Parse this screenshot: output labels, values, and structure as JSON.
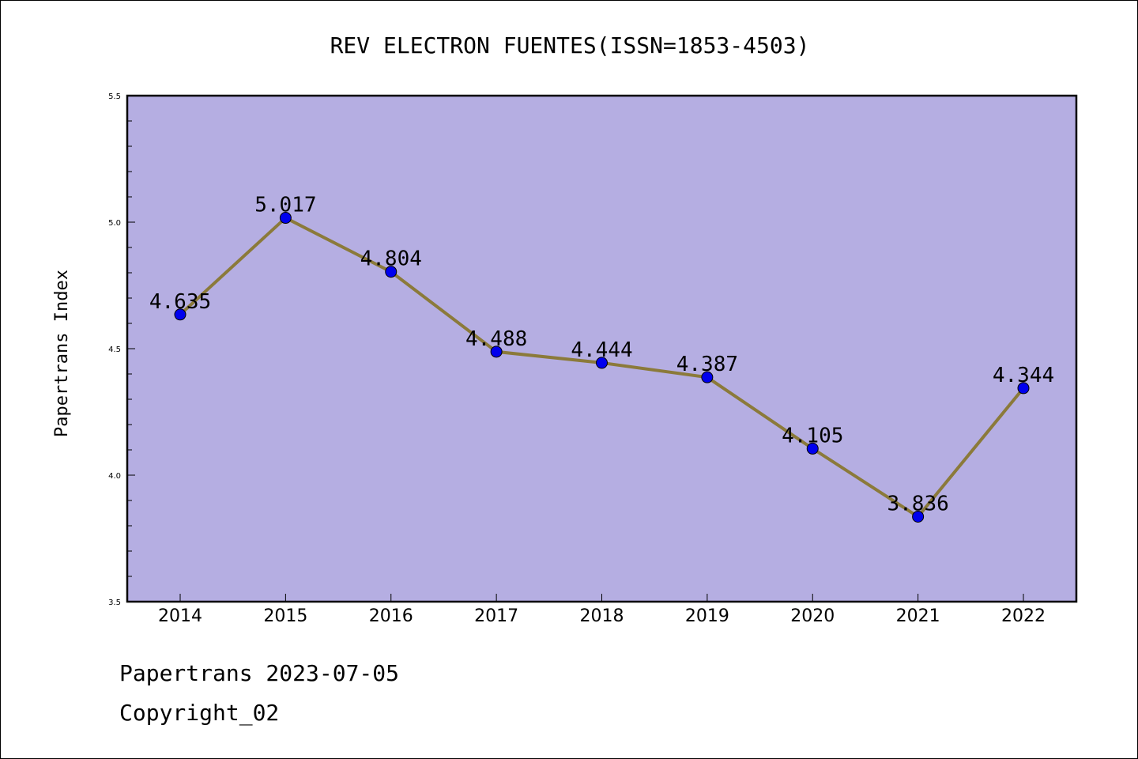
{
  "chart_data": {
    "type": "line",
    "title": "REV ELECTRON FUENTES(ISSN=1853-4503)",
    "xlabel": "",
    "ylabel": "Papertrans Index",
    "categories": [
      "2014",
      "2015",
      "2016",
      "2017",
      "2018",
      "2019",
      "2020",
      "2021",
      "2022"
    ],
    "values": [
      4.635,
      5.017,
      4.804,
      4.488,
      4.444,
      4.387,
      4.105,
      3.836,
      4.344
    ],
    "data_labels": [
      "4.635",
      "5.017",
      "4.804",
      "4.488",
      "4.444",
      "4.387",
      "4.105",
      "3.836",
      "4.344"
    ],
    "ylim": [
      3.5,
      5.5
    ],
    "yticks": [
      "3.5",
      "4.0",
      "4.5",
      "5.0",
      "5.5"
    ],
    "grid": false,
    "colors": {
      "plot_background": "#b5aee2",
      "line": "#8b7a3a",
      "marker": "#0000ee"
    }
  },
  "footer": {
    "line1": "Papertrans 2023-07-05",
    "line2": "Copyright_02"
  }
}
